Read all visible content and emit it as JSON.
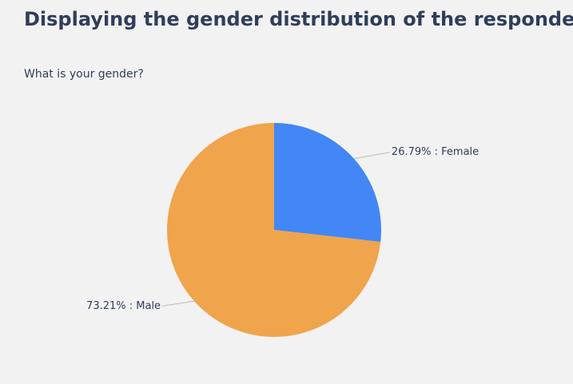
{
  "chart_data": {
    "type": "pie",
    "title": "Displaying the gender distribution of the respondents.",
    "subtitle": "What is your gender?",
    "values": [
      26.79,
      73.21
    ],
    "value_labels": [
      "26.79% : Female",
      "73.21% : Male"
    ],
    "colors": [
      "#4287f5",
      "#f0a44c"
    ]
  }
}
